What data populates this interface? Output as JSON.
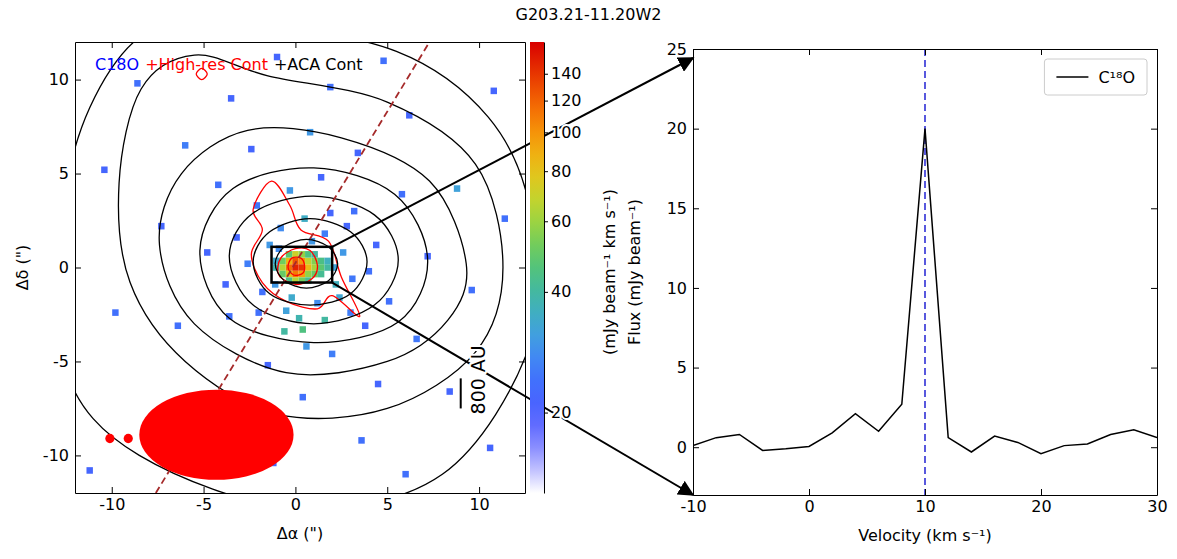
{
  "title": "G203.21-11.20W2",
  "chart_data": [
    {
      "type": "map",
      "xlabel": "Δα (\")",
      "ylabel": "Δδ (\")",
      "xlim": [
        -12,
        12.5
      ],
      "ylim": [
        -12,
        12
      ],
      "xticks": [
        -10,
        -5,
        0,
        5,
        10
      ],
      "yticks": [
        -10,
        -5,
        0,
        5,
        10
      ],
      "legend": "upper left",
      "colorbar": {
        "range": [
          12.6,
          168
        ],
        "ticks": [
          20,
          40,
          60,
          80,
          100,
          120,
          140
        ],
        "log": true
      },
      "series": [
        {
          "name": "C18O",
          "type": "heatmap",
          "color": "#0000ff",
          "cells": [
            [
              0,
              0,
              150
            ],
            [
              0.35,
              0,
              140
            ],
            [
              -0.35,
              0,
              115
            ],
            [
              0,
              0.35,
              125
            ],
            [
              0,
              -0.35,
              110
            ],
            [
              0.35,
              0.35,
              100
            ],
            [
              -0.35,
              0.35,
              85
            ],
            [
              0.35,
              -0.35,
              95
            ],
            [
              -0.35,
              -0.35,
              80
            ],
            [
              0.7,
              0,
              85
            ],
            [
              -0.7,
              0,
              65
            ],
            [
              0,
              0.7,
              70
            ],
            [
              0,
              -0.7,
              65
            ],
            [
              1.05,
              0,
              62
            ],
            [
              0.7,
              0.35,
              68
            ],
            [
              0.7,
              -0.35,
              58
            ],
            [
              -0.7,
              0.35,
              52
            ],
            [
              -0.7,
              -0.35,
              50
            ],
            [
              1.05,
              0.35,
              55
            ],
            [
              1.4,
              0,
              48
            ],
            [
              0.35,
              0.7,
              58
            ],
            [
              -0.35,
              0.7,
              48
            ],
            [
              0.35,
              -0.7,
              52
            ],
            [
              -0.35,
              -0.7,
              44
            ],
            [
              1.4,
              0.35,
              44
            ],
            [
              1.75,
              0,
              40
            ],
            [
              1.05,
              -0.35,
              50
            ],
            [
              -1.05,
              0,
              38
            ],
            [
              1.4,
              -0.35,
              42
            ],
            [
              1.75,
              0.35,
              36
            ],
            [
              1.05,
              0.7,
              40
            ],
            [
              0.7,
              0.7,
              45
            ],
            [
              0.7,
              -0.7,
              42
            ],
            [
              -1.05,
              0.35,
              34
            ],
            [
              2.1,
              0,
              32
            ],
            [
              -1.4,
              1.2,
              30
            ],
            [
              -0.8,
              2.1,
              28
            ],
            [
              0.5,
              2.6,
              35
            ],
            [
              1.6,
              1.8,
              26
            ],
            [
              2.6,
              0.8,
              30
            ],
            [
              3.1,
              -0.6,
              25
            ],
            [
              2.4,
              -1.6,
              33
            ],
            [
              1.2,
              -1.9,
              28
            ],
            [
              0.2,
              -2.7,
              38
            ],
            [
              -0.6,
              -3.4,
              40
            ],
            [
              0.6,
              -4.2,
              30
            ],
            [
              -1.8,
              -1.3,
              24
            ],
            [
              -2.6,
              0.2,
              26
            ],
            [
              -3.2,
              1.6,
              22
            ],
            [
              -2.1,
              3.3,
              25
            ],
            [
              -0.3,
              4.1,
              30
            ],
            [
              1.4,
              4.8,
              22
            ],
            [
              3.2,
              3.0,
              24
            ],
            [
              4.4,
              1.2,
              22
            ],
            [
              5.1,
              -1.8,
              24
            ],
            [
              3.8,
              -3.1,
              22
            ],
            [
              2.0,
              -4.6,
              26
            ],
            [
              -1.5,
              -5.2,
              22
            ],
            [
              -3.6,
              -2.6,
              24
            ],
            [
              -4.8,
              0.8,
              22
            ],
            [
              -4.2,
              4.4,
              24
            ],
            [
              -2.4,
              6.3,
              22
            ],
            [
              0.8,
              7.2,
              30
            ],
            [
              3.4,
              6.1,
              22
            ],
            [
              5.8,
              3.9,
              24
            ],
            [
              7.2,
              0.6,
              22
            ],
            [
              6.6,
              -3.8,
              25
            ],
            [
              4.5,
              -6.2,
              22
            ],
            [
              0.4,
              -6.9,
              24
            ],
            [
              -3.0,
              -7.4,
              22
            ],
            [
              -6.4,
              -3.1,
              24
            ],
            [
              -7.3,
              2.2,
              22
            ],
            [
              -6.0,
              6.5,
              26
            ],
            [
              -3.5,
              9.0,
              22
            ],
            [
              1.9,
              9.6,
              24
            ],
            [
              6.2,
              8.1,
              22
            ],
            [
              8.8,
              4.2,
              32
            ],
            [
              9.6,
              -1.2,
              24
            ],
            [
              8.4,
              -6.6,
              22
            ],
            [
              3.6,
              -9.2,
              24
            ],
            [
              -1.2,
              -10.4,
              22
            ],
            [
              -9.8,
              -2.4,
              24
            ],
            [
              -10.4,
              5.2,
              22
            ],
            [
              -8.6,
              9.8,
              24
            ],
            [
              -1.0,
              11.2,
              22
            ],
            [
              4.8,
              11.0,
              24
            ],
            [
              10.8,
              9.4,
              22
            ],
            [
              11.4,
              2.6,
              24
            ],
            [
              10.6,
              -9.6,
              22
            ],
            [
              -11.2,
              -10.8,
              22
            ],
            [
              6.0,
              -11.0,
              24
            ],
            [
              1.6,
              -2.8,
              40
            ],
            [
              -0.2,
              -1.6,
              34
            ],
            [
              0.9,
              1.4,
              30
            ],
            [
              -1.1,
              -0.9,
              30
            ],
            [
              2.2,
              -0.9,
              36
            ],
            [
              -0.9,
              1.0,
              28
            ],
            [
              0.4,
              -3.3,
              45
            ],
            [
              -0.5,
              -2.3,
              32
            ],
            [
              1.9,
              2.9,
              22
            ],
            [
              -2.0,
              -2.4,
              24
            ],
            [
              2.8,
              2.2,
              22
            ],
            [
              3.0,
              -2.4,
              26
            ],
            [
              -3.8,
              -0.9,
              22
            ],
            [
              4.0,
              -0.2,
              24
            ]
          ]
        },
        {
          "name": "+High-res Cont",
          "type": "contour",
          "color": "#ff0000",
          "contours": [
            {
              "x": [
                2.5,
                3.5,
                2.0,
                1.2,
                -0.5,
                -1.8,
                -2.4,
                -1.8,
                -2.3,
                -1.3,
                -0.3,
                0.3,
                1.8
              ],
              "y": [
                -0.5,
                -2.6,
                -1.5,
                -2.2,
                -1.8,
                -0.8,
                0.7,
                2.0,
                3.1,
                4.6,
                3.3,
                2.0,
                1.4
              ]
            },
            {
              "x": [
                1.2,
                0.8,
                0,
                -0.8,
                -0.9,
                0,
                0.9
              ],
              "y": [
                0.1,
                0.9,
                1.0,
                0.5,
                -0.4,
                -0.9,
                -0.6
              ]
            },
            {
              "x": [
                0.5,
                0.3,
                -0.2,
                -0.4,
                -0.1,
                0.4
              ],
              "y": [
                0.1,
                0.5,
                0.5,
                0.0,
                -0.4,
                -0.3
              ]
            },
            {
              "x": [
                -4.8,
                -5.1,
                -5.4,
                -5.1
              ],
              "y": [
                10.3,
                10.6,
                10.3,
                10.0
              ]
            }
          ]
        },
        {
          "name": "+ACA Cont",
          "type": "contour",
          "color": "#000000",
          "contours": [
            {
              "x": [
                2.3,
                1.8,
                0.6,
                -0.6,
                -1.1,
                -0.6,
                0.6,
                1.8
              ],
              "y": [
                0.2,
                1.1,
                1.5,
                1.1,
                0.2,
                -0.7,
                -1.1,
                -0.7
              ]
            },
            {
              "x": [
                3.9,
                3.0,
                0.8,
                -1.4,
                -2.3,
                -1.4,
                0.8,
                3.0
              ],
              "y": [
                0.3,
                1.9,
                2.6,
                1.9,
                0.3,
                -1.4,
                -2.0,
                -1.4
              ]
            },
            {
              "x": [
                5.6,
                4.3,
                1.0,
                -2.3,
                -3.6,
                -2.3,
                1.0,
                4.3
              ],
              "y": [
                0.4,
                2.8,
                3.8,
                2.9,
                0.6,
                -2.0,
                -3.0,
                -2.0
              ]
            },
            {
              "x": [
                7.2,
                5.4,
                1.0,
                -3.4,
                -5.2,
                -3.6,
                1.0,
                5.6
              ],
              "y": [
                0.4,
                3.9,
                5.3,
                4.2,
                0.9,
                -2.7,
                -4.0,
                -2.9
              ]
            },
            {
              "x": [
                9.3,
                7.3,
                2.5,
                -2.6,
                -6.2,
                -7.4,
                -5.5,
                -0.5,
                5.0,
                8.3
              ],
              "y": [
                0.2,
                4.6,
                6.9,
                7.3,
                5.0,
                1.2,
                -3.0,
                -5.6,
                -5.0,
                -2.8
              ]
            },
            {
              "x": [
                11.3,
                9.8,
                5.0,
                -1.5,
                -5.5,
                -8.4,
                -9.6,
                -9.0,
                -6.0,
                -1.0,
                5.0,
                9.8
              ],
              "y": [
                0.0,
                5.5,
                8.8,
                10.2,
                11.3,
                9.5,
                4.5,
                -0.8,
                -5.0,
                -7.8,
                -7.5,
                -4.5
              ]
            },
            {
              "x": [
                12.8,
                10.5,
                5.5,
                -2.5,
                -7.8,
                -11.2,
                -12.8,
                -12.5,
                -8.5,
                0,
                8,
                12.8
              ],
              "y": [
                3.0,
                8.0,
                11.5,
                13,
                12.7,
                8.5,
                2.0,
                -5.5,
                -10,
                -12.8,
                -11,
                -4
              ]
            }
          ]
        }
      ],
      "line": {
        "x": [
          -7.6,
          7.3
        ],
        "y": [
          -12,
          12
        ],
        "color": "#a52a2a",
        "line_style": "dashed"
      },
      "beams": {
        "color": "#ff0000",
        "items": [
          {
            "x": -4.3,
            "y": -8.9,
            "major": 4.2,
            "minor": 2.4
          },
          {
            "x": -10.1,
            "y": -9.1,
            "major": 0.25,
            "minor": 0.25
          },
          {
            "x": -9.1,
            "y": -9.1,
            "major": 0.25,
            "minor": 0.25
          }
        ]
      },
      "scalebar": {
        "label": "800 AU",
        "x": 9.0,
        "y": -7.5,
        "length": 1.6
      },
      "box": {
        "x": [
          -1.3,
          2.0
        ],
        "y": [
          -0.8,
          1.1
        ]
      }
    },
    {
      "type": "line",
      "xlabel": "Velocity  (km s⁻¹)",
      "ylabel": [
        "(mJy beam⁻¹ km s⁻¹)",
        "Flux (mJy beam⁻¹)"
      ],
      "xlim": [
        -10,
        30
      ],
      "ylim": [
        -3,
        25
      ],
      "xticks": [
        -10,
        0,
        10,
        20,
        30
      ],
      "yticks": [
        0,
        5,
        10,
        15,
        20,
        25
      ],
      "legend": "upper right",
      "series": [
        {
          "name": "C¹⁸O",
          "color": "#000000",
          "x": [
            -10,
            -8,
            -6,
            -4,
            -2,
            0,
            2,
            4,
            6,
            8,
            10,
            12,
            14,
            16,
            18,
            20,
            22,
            24,
            26,
            28,
            30
          ],
          "values": [
            0.1,
            0.6,
            0.8,
            -0.2,
            -0.1,
            0.05,
            0.9,
            2.1,
            1.0,
            2.7,
            20.0,
            0.6,
            -0.3,
            0.7,
            0.3,
            -0.4,
            0.1,
            0.2,
            0.8,
            1.1,
            0.6
          ]
        }
      ],
      "vline": {
        "x": 10,
        "color": "#0000cc",
        "line_style": "dashed"
      }
    }
  ]
}
